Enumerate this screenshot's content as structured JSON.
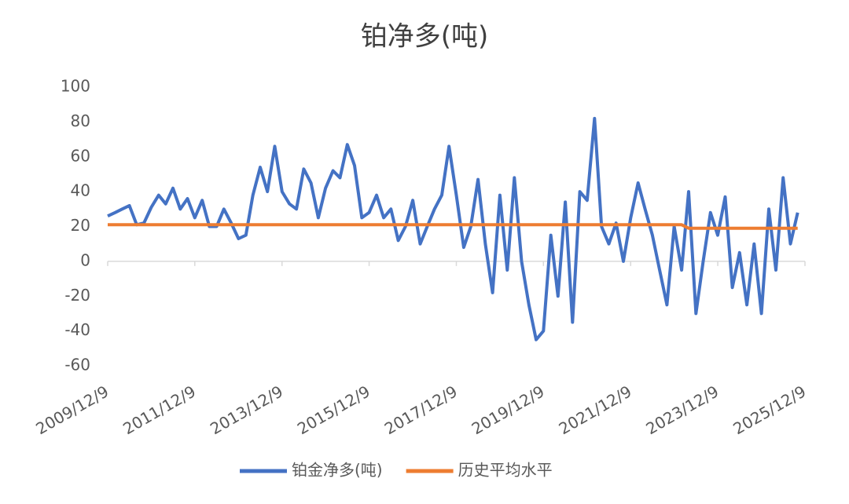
{
  "chart_data": {
    "type": "line",
    "title": "铂净多(吨)",
    "x": [
      "2009/12/9",
      "2010/2/9",
      "2010/4/9",
      "2010/6/9",
      "2010/8/9",
      "2010/10/9",
      "2010/12/9",
      "2011/2/9",
      "2011/4/9",
      "2011/6/9",
      "2011/8/9",
      "2011/10/9",
      "2011/12/9",
      "2012/2/9",
      "2012/4/9",
      "2012/6/9",
      "2012/8/9",
      "2012/10/9",
      "2012/12/9",
      "2013/2/9",
      "2013/4/9",
      "2013/6/9",
      "2013/8/9",
      "2013/10/9",
      "2013/12/9",
      "2014/2/9",
      "2014/4/9",
      "2014/6/9",
      "2014/8/9",
      "2014/10/9",
      "2014/12/9",
      "2015/2/9",
      "2015/4/9",
      "2015/6/9",
      "2015/8/9",
      "2015/10/9",
      "2015/12/9",
      "2016/2/9",
      "2016/4/9",
      "2016/6/9",
      "2016/8/9",
      "2016/10/9",
      "2016/12/9",
      "2017/2/9",
      "2017/4/9",
      "2017/6/9",
      "2017/8/9",
      "2017/10/9",
      "2017/12/9",
      "2018/2/9",
      "2018/4/9",
      "2018/6/9",
      "2018/8/9",
      "2018/10/9",
      "2018/12/9",
      "2019/2/9",
      "2019/4/9",
      "2019/6/9",
      "2019/8/9",
      "2019/10/9",
      "2019/12/9",
      "2020/2/9",
      "2020/4/9",
      "2020/6/9",
      "2020/8/9",
      "2020/10/9",
      "2020/12/9",
      "2021/2/9",
      "2021/4/9",
      "2021/6/9",
      "2021/8/9",
      "2021/10/9",
      "2021/12/9",
      "2022/2/9",
      "2022/4/9",
      "2022/6/9",
      "2022/8/9",
      "2022/10/9",
      "2022/12/9",
      "2023/2/9",
      "2023/4/9",
      "2023/6/9",
      "2023/8/9",
      "2023/10/9",
      "2023/12/9",
      "2024/2/9",
      "2024/4/9",
      "2024/6/9",
      "2024/8/9",
      "2024/10/9",
      "2024/12/9",
      "2025/2/9",
      "2025/4/9",
      "2025/6/9",
      "2025/8/9",
      "2025/10/9"
    ],
    "series": [
      {
        "name": "铂金净多(吨)",
        "color": "#4472c4",
        "values": [
          26,
          28,
          30,
          32,
          21,
          22,
          31,
          38,
          33,
          42,
          30,
          36,
          25,
          35,
          20,
          20,
          30,
          22,
          13,
          15,
          38,
          54,
          40,
          66,
          40,
          33,
          30,
          53,
          45,
          25,
          42,
          52,
          48,
          67,
          55,
          25,
          28,
          38,
          25,
          30,
          12,
          20,
          35,
          10,
          20,
          30,
          38,
          66,
          38,
          8,
          20,
          47,
          10,
          -18,
          38,
          -5,
          48,
          0,
          -25,
          -45,
          -40,
          15,
          -20,
          34,
          -35,
          40,
          35,
          82,
          20,
          10,
          22,
          0,
          25,
          45,
          30,
          15,
          -5,
          -25,
          20,
          -5,
          40,
          -30,
          0,
          28,
          15,
          37,
          -15,
          5,
          -25,
          10,
          -30,
          30,
          -5,
          48,
          10,
          28
        ]
      },
      {
        "name": "历史平均水平",
        "color": "#ed7d31",
        "values": [
          21,
          21,
          21,
          21,
          21,
          21,
          21,
          21,
          21,
          21,
          21,
          21,
          21,
          21,
          21,
          21,
          21,
          21,
          21,
          21,
          21,
          21,
          21,
          21,
          21,
          21,
          21,
          21,
          21,
          21,
          21,
          21,
          21,
          21,
          21,
          21,
          21,
          21,
          21,
          21,
          21,
          21,
          21,
          21,
          21,
          21,
          21,
          21,
          21,
          21,
          21,
          21,
          21,
          21,
          21,
          21,
          21,
          21,
          21,
          21,
          21,
          21,
          21,
          21,
          21,
          21,
          21,
          21,
          21,
          21,
          21,
          21,
          21,
          21,
          21,
          21,
          21,
          21,
          21,
          21,
          19,
          19,
          19,
          19,
          19,
          19,
          19,
          19,
          19,
          19,
          19,
          19,
          19,
          19,
          19,
          19
        ]
      }
    ],
    "xlim": [
      "2009/12/9",
      "2025/12/9"
    ],
    "xticks": [
      "2009/12/9",
      "2011/12/9",
      "2013/12/9",
      "2015/12/9",
      "2017/12/9",
      "2019/12/9",
      "2021/12/9",
      "2023/12/9",
      "2025/12/9"
    ],
    "ylim": [
      -60,
      100
    ],
    "yticks": [
      -60,
      -40,
      -20,
      0,
      20,
      40,
      60,
      80,
      100
    ],
    "legend": "bottom"
  }
}
